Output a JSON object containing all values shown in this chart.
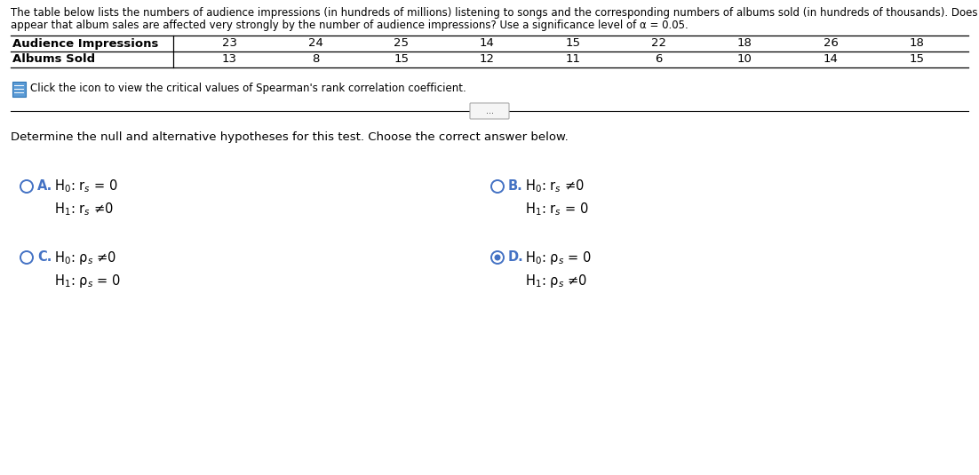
{
  "bg_color": "#ffffff",
  "header_line1": "The table below lists the numbers of audience impressions (in hundreds of millions) listening to songs and the corresponding numbers of albums sold (in hundreds of thousands). Does it",
  "header_line2": "appear that album sales are affected very strongly by the number of audience impressions? Use a significance level of α = 0.05.",
  "table_row1_label": "Audience Impressions",
  "table_row2_label": "Albums Sold",
  "audience": [
    23,
    24,
    25,
    14,
    15,
    22,
    18,
    26,
    18
  ],
  "albums": [
    13,
    8,
    15,
    12,
    11,
    6,
    10,
    14,
    15
  ],
  "click_icon_text": "Click the icon to view the critical values of Spearman's rank correlation coefficient.",
  "determine_text": "Determine the null and alternative hypotheses for this test. Choose the correct answer below.",
  "option_A_label": "A.",
  "option_A_line1": "H$_0$: r$_s$ = 0",
  "option_A_line2": "H$_1$: r$_s$ ≠0",
  "option_B_label": "B.",
  "option_B_line1": "H$_0$: r$_s$ ≠0",
  "option_B_line2": "H$_1$: r$_s$ = 0",
  "option_C_label": "C.",
  "option_C_line1": "H$_0$: ρ$_s$ ≠0",
  "option_C_line2": "H$_1$: ρ$_s$ = 0",
  "option_D_label": "D.",
  "option_D_line1": "H$_0$: ρ$_s$ = 0",
  "option_D_line2": "H$_1$: ρ$_s$ ≠0",
  "selected_option": "D",
  "circle_color": "#4472c4",
  "text_color": "#000000",
  "label_color": "#4472c4",
  "font_size_header": 8.5,
  "font_size_table": 9.5,
  "font_size_options": 10.5,
  "font_size_determine": 9.5,
  "font_size_click": 8.5
}
